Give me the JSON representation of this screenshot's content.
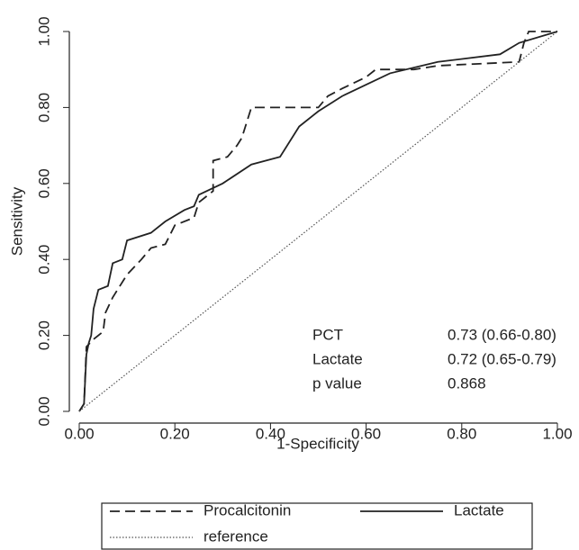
{
  "chart_data": {
    "type": "line",
    "xlabel": "1-Specificity",
    "ylabel": "Sensitivity",
    "xlim": [
      0,
      1
    ],
    "ylim": [
      0,
      1
    ],
    "xticks": [
      {
        "value": 0,
        "label": "0.00"
      },
      {
        "value": 0.2,
        "label": "0.20"
      },
      {
        "value": 0.4,
        "label": "0.40"
      },
      {
        "value": 0.6,
        "label": "0.60"
      },
      {
        "value": 0.8,
        "label": "0.80"
      },
      {
        "value": 1,
        "label": "1.00"
      }
    ],
    "yticks": [
      {
        "value": 0,
        "label": "0.00"
      },
      {
        "value": 0.2,
        "label": "0.20"
      },
      {
        "value": 0.4,
        "label": "0.40"
      },
      {
        "value": 0.6,
        "label": "0.60"
      },
      {
        "value": 0.8,
        "label": "0.80"
      },
      {
        "value": 1,
        "label": "1.00"
      }
    ],
    "series": [
      {
        "name": "Procalcitonin",
        "color": "#222222",
        "style": "dashed",
        "x": [
          0,
          0.01,
          0.015,
          0.03,
          0.05,
          0.055,
          0.07,
          0.1,
          0.13,
          0.15,
          0.18,
          0.2,
          0.24,
          0.25,
          0.28,
          0.28,
          0.31,
          0.33,
          0.34,
          0.36,
          0.5,
          0.52,
          0.55,
          0.6,
          0.62,
          0.7,
          0.75,
          0.92,
          0.93,
          0.94,
          1
        ],
        "values": [
          0,
          0.02,
          0.17,
          0.19,
          0.21,
          0.26,
          0.3,
          0.36,
          0.4,
          0.43,
          0.44,
          0.49,
          0.51,
          0.55,
          0.58,
          0.66,
          0.67,
          0.7,
          0.72,
          0.8,
          0.8,
          0.83,
          0.85,
          0.88,
          0.9,
          0.9,
          0.91,
          0.92,
          0.97,
          1,
          1
        ]
      },
      {
        "name": "Lactate",
        "color": "#222222",
        "style": "solid",
        "x": [
          0,
          0.01,
          0.015,
          0.02,
          0.025,
          0.03,
          0.04,
          0.06,
          0.07,
          0.09,
          0.1,
          0.15,
          0.18,
          0.22,
          0.24,
          0.25,
          0.3,
          0.36,
          0.42,
          0.46,
          0.5,
          0.55,
          0.6,
          0.65,
          0.75,
          0.88,
          0.92,
          1
        ],
        "values": [
          0,
          0.02,
          0.15,
          0.18,
          0.2,
          0.27,
          0.32,
          0.33,
          0.39,
          0.4,
          0.45,
          0.47,
          0.5,
          0.53,
          0.54,
          0.57,
          0.6,
          0.65,
          0.67,
          0.75,
          0.79,
          0.83,
          0.86,
          0.89,
          0.92,
          0.94,
          0.97,
          1
        ]
      },
      {
        "name": "reference",
        "color": "#555555",
        "style": "dotted",
        "x": [
          0,
          1
        ],
        "values": [
          0,
          1
        ]
      }
    ],
    "annotations": [
      [
        "PCT",
        "0.73 (0.66-0.80)"
      ],
      [
        "Lactate",
        "0.72 (0.65-0.79)"
      ],
      [
        "p value",
        "0.868"
      ]
    ]
  }
}
